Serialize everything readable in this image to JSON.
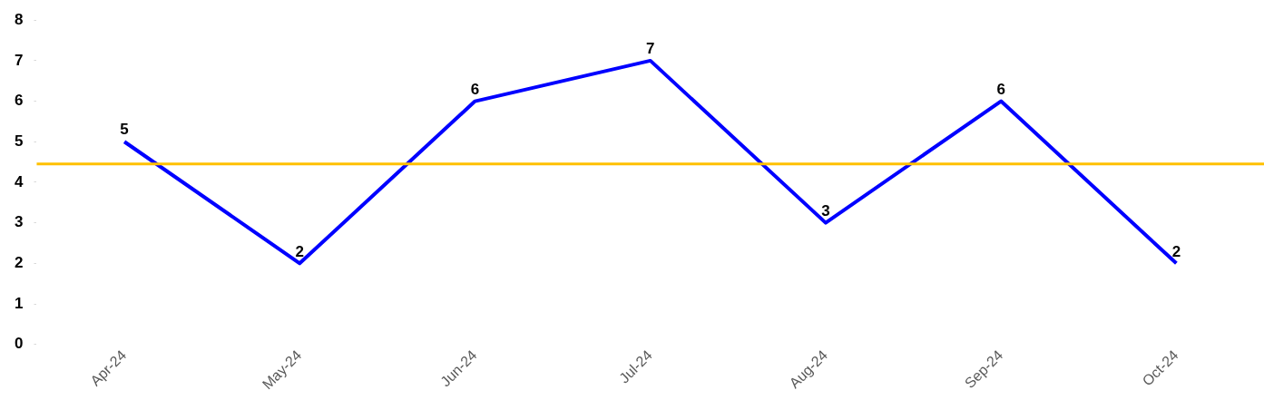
{
  "chart_data": {
    "type": "line",
    "categories": [
      "Apr-24",
      "May-24",
      "Jun-24",
      "Jul-24",
      "Aug-24",
      "Sep-24",
      "Oct-24"
    ],
    "series": [
      {
        "color": "#0000ff",
        "values": [
          5,
          2,
          6,
          7,
          3,
          6,
          2
        ]
      }
    ],
    "ylim": [
      0,
      8
    ],
    "yticks": [
      0,
      1,
      2,
      3,
      4,
      5,
      6,
      7,
      8
    ],
    "grid": false,
    "legend": false,
    "marker": "none",
    "line_style": "solid",
    "data_labels": true,
    "ref_lines": [
      {
        "axis": "y",
        "value": 4.45,
        "color": "#ffc000",
        "line_style": "solid"
      }
    ]
  }
}
